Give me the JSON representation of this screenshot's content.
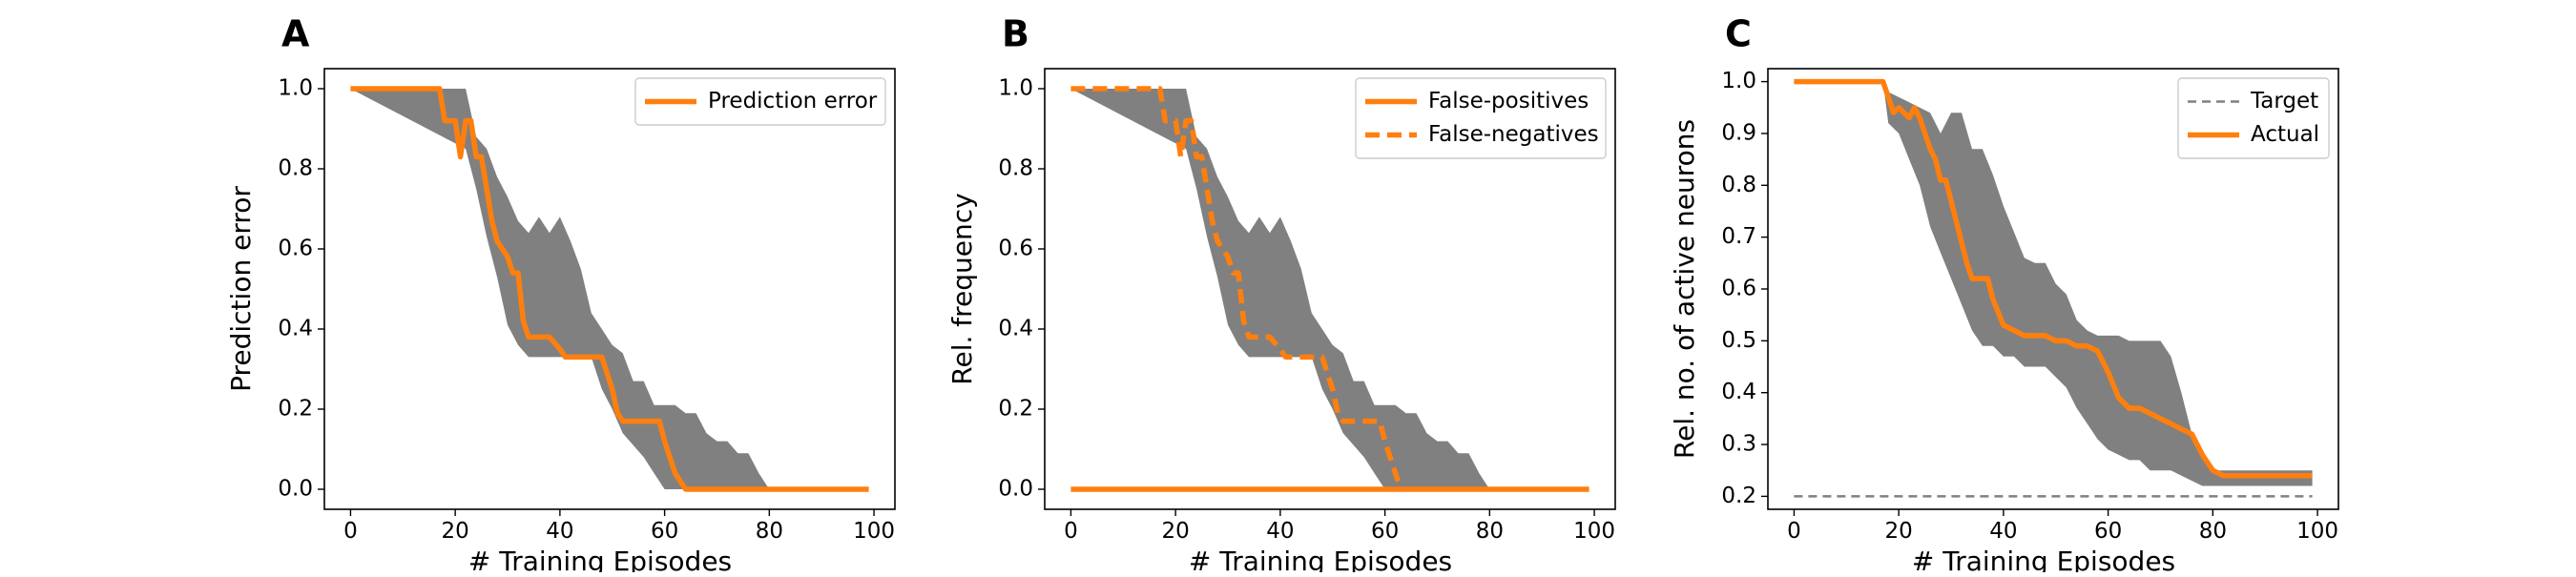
{
  "figure": {
    "panels": [
      {
        "letter": "A"
      },
      {
        "letter": "B"
      },
      {
        "letter": "C"
      }
    ]
  },
  "colors": {
    "orange": "#ff7f0e",
    "band": "#808080",
    "target": "#808080"
  },
  "chart_data": [
    {
      "type": "line",
      "title": "",
      "xlabel": "# Training Episodes",
      "ylabel": "Prediction error",
      "xlim": [
        -5,
        104
      ],
      "ylim": [
        -0.05,
        1.05
      ],
      "xticks": [
        0,
        20,
        40,
        60,
        80,
        100
      ],
      "yticks": [
        "0.0",
        "0.2",
        "0.4",
        "0.6",
        "0.8",
        "1.0"
      ],
      "legend_position": "top-right",
      "band": {
        "upper": [
          [
            0,
            1.0
          ],
          [
            22,
            1.0
          ],
          [
            24,
            0.88
          ],
          [
            26,
            0.85
          ],
          [
            28,
            0.78
          ],
          [
            30,
            0.73
          ],
          [
            32,
            0.67
          ],
          [
            34,
            0.64
          ],
          [
            36,
            0.68
          ],
          [
            38,
            0.64
          ],
          [
            40,
            0.68
          ],
          [
            42,
            0.62
          ],
          [
            44,
            0.55
          ],
          [
            46,
            0.44
          ],
          [
            48,
            0.4
          ],
          [
            50,
            0.36
          ],
          [
            52,
            0.34
          ],
          [
            54,
            0.27
          ],
          [
            56,
            0.27
          ],
          [
            58,
            0.21
          ],
          [
            60,
            0.21
          ],
          [
            62,
            0.21
          ],
          [
            64,
            0.19
          ],
          [
            66,
            0.19
          ],
          [
            68,
            0.14
          ],
          [
            70,
            0.12
          ],
          [
            72,
            0.12
          ],
          [
            74,
            0.09
          ],
          [
            76,
            0.09
          ],
          [
            78,
            0.04
          ],
          [
            80,
            0.0
          ],
          [
            99,
            0.0
          ]
        ],
        "lower": [
          [
            0,
            1.0
          ],
          [
            22,
            0.85
          ],
          [
            24,
            0.75
          ],
          [
            26,
            0.63
          ],
          [
            28,
            0.53
          ],
          [
            30,
            0.41
          ],
          [
            32,
            0.36
          ],
          [
            34,
            0.33
          ],
          [
            36,
            0.33
          ],
          [
            38,
            0.33
          ],
          [
            40,
            0.33
          ],
          [
            42,
            0.33
          ],
          [
            44,
            0.33
          ],
          [
            46,
            0.33
          ],
          [
            48,
            0.25
          ],
          [
            50,
            0.2
          ],
          [
            52,
            0.14
          ],
          [
            54,
            0.11
          ],
          [
            56,
            0.08
          ],
          [
            58,
            0.04
          ],
          [
            60,
            0.0
          ],
          [
            99,
            0.0
          ]
        ]
      },
      "series": [
        {
          "name": "Prediction error",
          "style": "solid",
          "points": [
            [
              0,
              1.0
            ],
            [
              17,
              1.0
            ],
            [
              18,
              0.92
            ],
            [
              20,
              0.92
            ],
            [
              21,
              0.83
            ],
            [
              22,
              0.92
            ],
            [
              23,
              0.92
            ],
            [
              24,
              0.83
            ],
            [
              25,
              0.83
            ],
            [
              26,
              0.75
            ],
            [
              27,
              0.67
            ],
            [
              28,
              0.62
            ],
            [
              30,
              0.58
            ],
            [
              31,
              0.54
            ],
            [
              32,
              0.54
            ],
            [
              33,
              0.42
            ],
            [
              34,
              0.38
            ],
            [
              38,
              0.38
            ],
            [
              40,
              0.35
            ],
            [
              41,
              0.33
            ],
            [
              48,
              0.33
            ],
            [
              50,
              0.25
            ],
            [
              51,
              0.19
            ],
            [
              52,
              0.17
            ],
            [
              59,
              0.17
            ],
            [
              60,
              0.12
            ],
            [
              62,
              0.04
            ],
            [
              64,
              0.0
            ],
            [
              99,
              0.0
            ]
          ]
        }
      ]
    },
    {
      "type": "line",
      "title": "",
      "xlabel": "# Training Episodes",
      "ylabel": "Rel. frequency",
      "xlim": [
        -5,
        104
      ],
      "ylim": [
        -0.05,
        1.05
      ],
      "xticks": [
        0,
        20,
        40,
        60,
        80,
        100
      ],
      "yticks": [
        "0.0",
        "0.2",
        "0.4",
        "0.6",
        "0.8",
        "1.0"
      ],
      "legend_position": "top-right",
      "band": {
        "upper": [
          [
            0,
            1.0
          ],
          [
            22,
            1.0
          ],
          [
            24,
            0.88
          ],
          [
            26,
            0.85
          ],
          [
            28,
            0.78
          ],
          [
            30,
            0.73
          ],
          [
            32,
            0.67
          ],
          [
            34,
            0.64
          ],
          [
            36,
            0.68
          ],
          [
            38,
            0.64
          ],
          [
            40,
            0.68
          ],
          [
            42,
            0.62
          ],
          [
            44,
            0.55
          ],
          [
            46,
            0.44
          ],
          [
            48,
            0.4
          ],
          [
            50,
            0.36
          ],
          [
            52,
            0.34
          ],
          [
            54,
            0.27
          ],
          [
            56,
            0.27
          ],
          [
            58,
            0.21
          ],
          [
            60,
            0.21
          ],
          [
            62,
            0.21
          ],
          [
            64,
            0.19
          ],
          [
            66,
            0.19
          ],
          [
            68,
            0.14
          ],
          [
            70,
            0.12
          ],
          [
            72,
            0.12
          ],
          [
            74,
            0.09
          ],
          [
            76,
            0.09
          ],
          [
            78,
            0.04
          ],
          [
            80,
            0.0
          ],
          [
            99,
            0.0
          ]
        ],
        "lower": [
          [
            0,
            1.0
          ],
          [
            22,
            0.85
          ],
          [
            24,
            0.75
          ],
          [
            26,
            0.63
          ],
          [
            28,
            0.53
          ],
          [
            30,
            0.41
          ],
          [
            32,
            0.36
          ],
          [
            34,
            0.33
          ],
          [
            36,
            0.33
          ],
          [
            38,
            0.33
          ],
          [
            40,
            0.33
          ],
          [
            42,
            0.33
          ],
          [
            44,
            0.33
          ],
          [
            46,
            0.33
          ],
          [
            48,
            0.25
          ],
          [
            50,
            0.2
          ],
          [
            52,
            0.14
          ],
          [
            54,
            0.11
          ],
          [
            56,
            0.08
          ],
          [
            58,
            0.04
          ],
          [
            60,
            0.0
          ],
          [
            99,
            0.0
          ]
        ]
      },
      "series": [
        {
          "name": "False-positives",
          "style": "solid",
          "points": [
            [
              0,
              0.0
            ],
            [
              99,
              0.0
            ]
          ]
        },
        {
          "name": "False-negatives",
          "style": "dashed",
          "points": [
            [
              0,
              1.0
            ],
            [
              17,
              1.0
            ],
            [
              18,
              0.92
            ],
            [
              20,
              0.92
            ],
            [
              21,
              0.83
            ],
            [
              22,
              0.92
            ],
            [
              23,
              0.92
            ],
            [
              24,
              0.83
            ],
            [
              25,
              0.83
            ],
            [
              26,
              0.75
            ],
            [
              27,
              0.67
            ],
            [
              28,
              0.62
            ],
            [
              30,
              0.58
            ],
            [
              31,
              0.54
            ],
            [
              32,
              0.54
            ],
            [
              33,
              0.42
            ],
            [
              34,
              0.38
            ],
            [
              38,
              0.38
            ],
            [
              40,
              0.35
            ],
            [
              41,
              0.33
            ],
            [
              48,
              0.33
            ],
            [
              50,
              0.25
            ],
            [
              51,
              0.19
            ],
            [
              52,
              0.17
            ],
            [
              59,
              0.17
            ],
            [
              60,
              0.12
            ],
            [
              62,
              0.04
            ],
            [
              63,
              0.0
            ]
          ]
        }
      ]
    },
    {
      "type": "line",
      "title": "",
      "xlabel": "# Training Episodes",
      "ylabel": "Rel. no. of active neurons",
      "xlim": [
        -5,
        104
      ],
      "ylim": [
        0.175,
        1.025
      ],
      "xticks": [
        0,
        20,
        40,
        60,
        80,
        100
      ],
      "yticks": [
        "0.2",
        "0.3",
        "0.4",
        "0.5",
        "0.6",
        "0.7",
        "0.8",
        "0.9",
        "1.0"
      ],
      "legend_position": "top-right",
      "band": {
        "upper": [
          [
            0,
            1.0
          ],
          [
            17,
            1.0
          ],
          [
            18,
            0.98
          ],
          [
            20,
            0.97
          ],
          [
            22,
            0.96
          ],
          [
            24,
            0.95
          ],
          [
            26,
            0.94
          ],
          [
            28,
            0.9
          ],
          [
            30,
            0.94
          ],
          [
            32,
            0.94
          ],
          [
            34,
            0.87
          ],
          [
            36,
            0.87
          ],
          [
            38,
            0.82
          ],
          [
            40,
            0.76
          ],
          [
            42,
            0.71
          ],
          [
            44,
            0.66
          ],
          [
            46,
            0.65
          ],
          [
            48,
            0.65
          ],
          [
            50,
            0.61
          ],
          [
            52,
            0.59
          ],
          [
            54,
            0.54
          ],
          [
            56,
            0.52
          ],
          [
            58,
            0.51
          ],
          [
            60,
            0.51
          ],
          [
            62,
            0.51
          ],
          [
            64,
            0.5
          ],
          [
            66,
            0.5
          ],
          [
            68,
            0.5
          ],
          [
            70,
            0.5
          ],
          [
            72,
            0.47
          ],
          [
            74,
            0.4
          ],
          [
            76,
            0.32
          ],
          [
            78,
            0.28
          ],
          [
            80,
            0.25
          ],
          [
            99,
            0.25
          ]
        ],
        "lower": [
          [
            0,
            1.0
          ],
          [
            17,
            1.0
          ],
          [
            18,
            0.92
          ],
          [
            20,
            0.9
          ],
          [
            22,
            0.85
          ],
          [
            24,
            0.8
          ],
          [
            26,
            0.72
          ],
          [
            28,
            0.67
          ],
          [
            30,
            0.62
          ],
          [
            32,
            0.57
          ],
          [
            34,
            0.52
          ],
          [
            36,
            0.49
          ],
          [
            38,
            0.49
          ],
          [
            40,
            0.47
          ],
          [
            42,
            0.47
          ],
          [
            44,
            0.45
          ],
          [
            46,
            0.45
          ],
          [
            48,
            0.45
          ],
          [
            50,
            0.43
          ],
          [
            52,
            0.41
          ],
          [
            54,
            0.37
          ],
          [
            56,
            0.34
          ],
          [
            58,
            0.31
          ],
          [
            60,
            0.29
          ],
          [
            62,
            0.28
          ],
          [
            64,
            0.27
          ],
          [
            66,
            0.27
          ],
          [
            68,
            0.25
          ],
          [
            70,
            0.25
          ],
          [
            72,
            0.25
          ],
          [
            74,
            0.24
          ],
          [
            76,
            0.23
          ],
          [
            78,
            0.22
          ],
          [
            80,
            0.22
          ],
          [
            99,
            0.22
          ]
        ]
      },
      "series": [
        {
          "name": "Target",
          "style": "dashed-thin",
          "points": [
            [
              0,
              0.2
            ],
            [
              99,
              0.2
            ]
          ]
        },
        {
          "name": "Actual",
          "style": "solid",
          "points": [
            [
              0,
              1.0
            ],
            [
              17,
              1.0
            ],
            [
              18,
              0.97
            ],
            [
              19,
              0.94
            ],
            [
              20,
              0.95
            ],
            [
              21,
              0.94
            ],
            [
              22,
              0.93
            ],
            [
              23,
              0.95
            ],
            [
              24,
              0.93
            ],
            [
              25,
              0.9
            ],
            [
              26,
              0.87
            ],
            [
              27,
              0.85
            ],
            [
              28,
              0.81
            ],
            [
              29,
              0.81
            ],
            [
              30,
              0.77
            ],
            [
              31,
              0.73
            ],
            [
              32,
              0.69
            ],
            [
              33,
              0.65
            ],
            [
              34,
              0.62
            ],
            [
              36,
              0.62
            ],
            [
              37,
              0.62
            ],
            [
              38,
              0.58
            ],
            [
              40,
              0.53
            ],
            [
              42,
              0.52
            ],
            [
              44,
              0.51
            ],
            [
              48,
              0.51
            ],
            [
              50,
              0.5
            ],
            [
              52,
              0.5
            ],
            [
              54,
              0.49
            ],
            [
              56,
              0.49
            ],
            [
              58,
              0.48
            ],
            [
              60,
              0.44
            ],
            [
              62,
              0.39
            ],
            [
              64,
              0.37
            ],
            [
              66,
              0.37
            ],
            [
              68,
              0.36
            ],
            [
              70,
              0.35
            ],
            [
              72,
              0.34
            ],
            [
              74,
              0.33
            ],
            [
              76,
              0.32
            ],
            [
              78,
              0.28
            ],
            [
              80,
              0.25
            ],
            [
              82,
              0.24
            ],
            [
              99,
              0.24
            ]
          ]
        }
      ]
    }
  ]
}
